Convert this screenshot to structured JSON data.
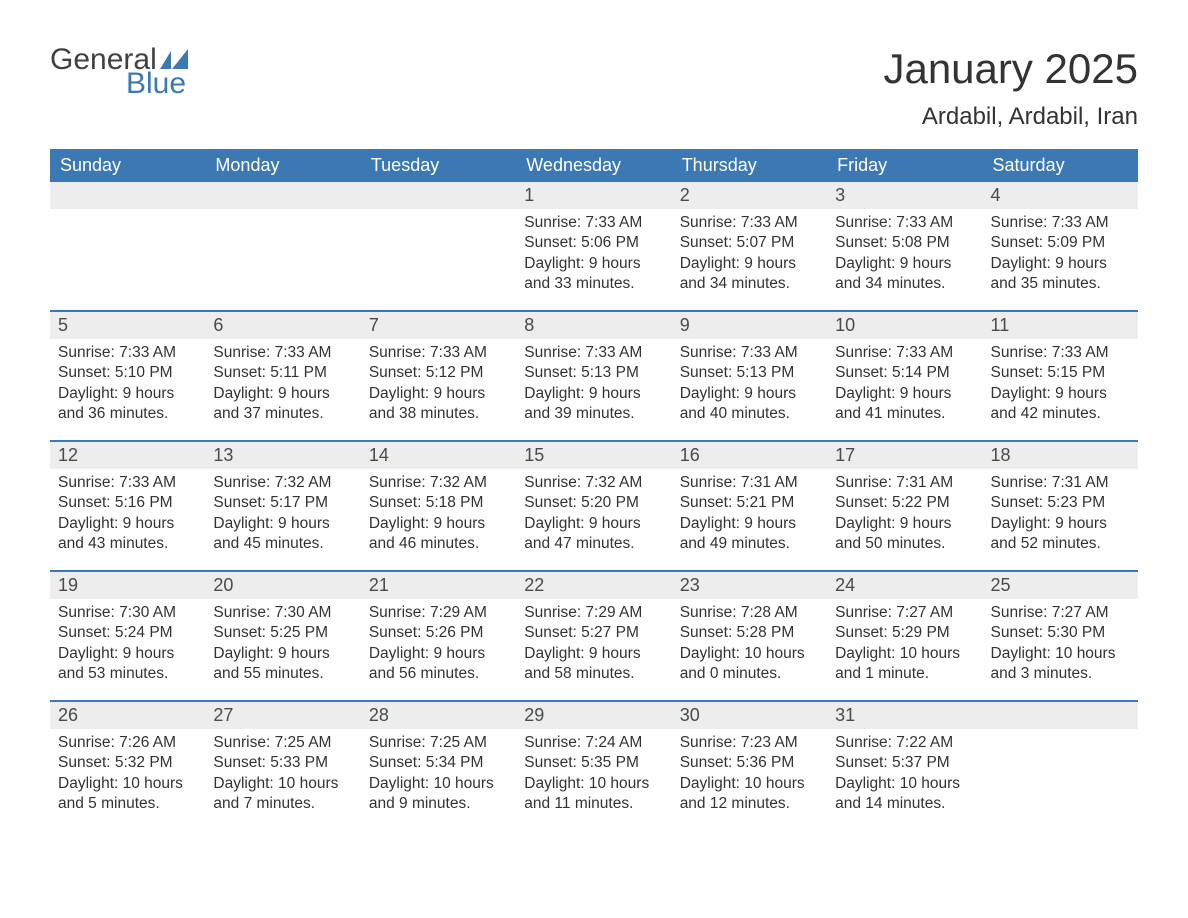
{
  "brand": {
    "part1": "General",
    "part2": "Blue",
    "color1": "#414141",
    "color2": "#3c78b4"
  },
  "title": "January 2025",
  "location": "Ardabil, Ardabil, Iran",
  "header_bg": "#3c78b4",
  "header_fg": "#ffffff",
  "daynum_bg": "#ededed",
  "week_border": "#3c78b4",
  "weekdays": [
    "Sunday",
    "Monday",
    "Tuesday",
    "Wednesday",
    "Thursday",
    "Friday",
    "Saturday"
  ],
  "weeks": [
    [
      null,
      null,
      null,
      {
        "n": "1",
        "sr": "7:33 AM",
        "ss": "5:06 PM",
        "dl": "9 hours and 33 minutes."
      },
      {
        "n": "2",
        "sr": "7:33 AM",
        "ss": "5:07 PM",
        "dl": "9 hours and 34 minutes."
      },
      {
        "n": "3",
        "sr": "7:33 AM",
        "ss": "5:08 PM",
        "dl": "9 hours and 34 minutes."
      },
      {
        "n": "4",
        "sr": "7:33 AM",
        "ss": "5:09 PM",
        "dl": "9 hours and 35 minutes."
      }
    ],
    [
      {
        "n": "5",
        "sr": "7:33 AM",
        "ss": "5:10 PM",
        "dl": "9 hours and 36 minutes."
      },
      {
        "n": "6",
        "sr": "7:33 AM",
        "ss": "5:11 PM",
        "dl": "9 hours and 37 minutes."
      },
      {
        "n": "7",
        "sr": "7:33 AM",
        "ss": "5:12 PM",
        "dl": "9 hours and 38 minutes."
      },
      {
        "n": "8",
        "sr": "7:33 AM",
        "ss": "5:13 PM",
        "dl": "9 hours and 39 minutes."
      },
      {
        "n": "9",
        "sr": "7:33 AM",
        "ss": "5:13 PM",
        "dl": "9 hours and 40 minutes."
      },
      {
        "n": "10",
        "sr": "7:33 AM",
        "ss": "5:14 PM",
        "dl": "9 hours and 41 minutes."
      },
      {
        "n": "11",
        "sr": "7:33 AM",
        "ss": "5:15 PM",
        "dl": "9 hours and 42 minutes."
      }
    ],
    [
      {
        "n": "12",
        "sr": "7:33 AM",
        "ss": "5:16 PM",
        "dl": "9 hours and 43 minutes."
      },
      {
        "n": "13",
        "sr": "7:32 AM",
        "ss": "5:17 PM",
        "dl": "9 hours and 45 minutes."
      },
      {
        "n": "14",
        "sr": "7:32 AM",
        "ss": "5:18 PM",
        "dl": "9 hours and 46 minutes."
      },
      {
        "n": "15",
        "sr": "7:32 AM",
        "ss": "5:20 PM",
        "dl": "9 hours and 47 minutes."
      },
      {
        "n": "16",
        "sr": "7:31 AM",
        "ss": "5:21 PM",
        "dl": "9 hours and 49 minutes."
      },
      {
        "n": "17",
        "sr": "7:31 AM",
        "ss": "5:22 PM",
        "dl": "9 hours and 50 minutes."
      },
      {
        "n": "18",
        "sr": "7:31 AM",
        "ss": "5:23 PM",
        "dl": "9 hours and 52 minutes."
      }
    ],
    [
      {
        "n": "19",
        "sr": "7:30 AM",
        "ss": "5:24 PM",
        "dl": "9 hours and 53 minutes."
      },
      {
        "n": "20",
        "sr": "7:30 AM",
        "ss": "5:25 PM",
        "dl": "9 hours and 55 minutes."
      },
      {
        "n": "21",
        "sr": "7:29 AM",
        "ss": "5:26 PM",
        "dl": "9 hours and 56 minutes."
      },
      {
        "n": "22",
        "sr": "7:29 AM",
        "ss": "5:27 PM",
        "dl": "9 hours and 58 minutes."
      },
      {
        "n": "23",
        "sr": "7:28 AM",
        "ss": "5:28 PM",
        "dl": "10 hours and 0 minutes."
      },
      {
        "n": "24",
        "sr": "7:27 AM",
        "ss": "5:29 PM",
        "dl": "10 hours and 1 minute."
      },
      {
        "n": "25",
        "sr": "7:27 AM",
        "ss": "5:30 PM",
        "dl": "10 hours and 3 minutes."
      }
    ],
    [
      {
        "n": "26",
        "sr": "7:26 AM",
        "ss": "5:32 PM",
        "dl": "10 hours and 5 minutes."
      },
      {
        "n": "27",
        "sr": "7:25 AM",
        "ss": "5:33 PM",
        "dl": "10 hours and 7 minutes."
      },
      {
        "n": "28",
        "sr": "7:25 AM",
        "ss": "5:34 PM",
        "dl": "10 hours and 9 minutes."
      },
      {
        "n": "29",
        "sr": "7:24 AM",
        "ss": "5:35 PM",
        "dl": "10 hours and 11 minutes."
      },
      {
        "n": "30",
        "sr": "7:23 AM",
        "ss": "5:36 PM",
        "dl": "10 hours and 12 minutes."
      },
      {
        "n": "31",
        "sr": "7:22 AM",
        "ss": "5:37 PM",
        "dl": "10 hours and 14 minutes."
      },
      null
    ]
  ],
  "labels": {
    "sunrise": "Sunrise: ",
    "sunset": "Sunset: ",
    "daylight": "Daylight: "
  }
}
